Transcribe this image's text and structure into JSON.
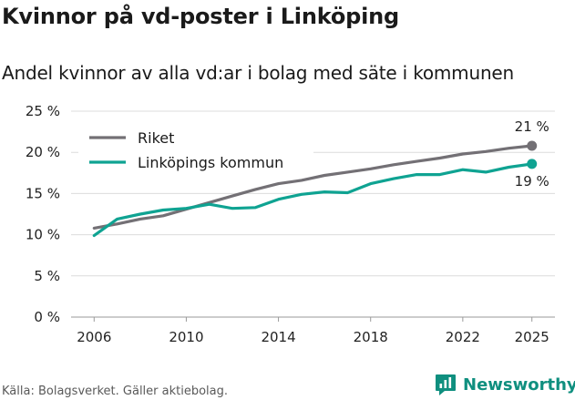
{
  "title": "Kvinnor på vd-poster i Linköping",
  "subtitle": "Andel kvinnor av alla vd:ar i bolag med säte i kommunen",
  "source": "Källa: Bolagsverket. Gäller aktiebolag.",
  "brand": {
    "name": "Newsworthy",
    "icon": "newsworthy-logo-icon",
    "color": "#0f8f7f"
  },
  "chart_data": {
    "type": "line",
    "title": "Kvinnor på vd-poster i Linköping",
    "subtitle": "Andel kvinnor av alla vd:ar i bolag med säte i kommunen",
    "xlabel": "",
    "ylabel": "",
    "x": [
      2006,
      2007,
      2008,
      2009,
      2010,
      2011,
      2012,
      2013,
      2014,
      2015,
      2016,
      2017,
      2018,
      2019,
      2020,
      2021,
      2022,
      2023,
      2024,
      2025
    ],
    "xticks": [
      2006,
      2010,
      2014,
      2018,
      2022,
      2025
    ],
    "xlim": [
      2005,
      2026
    ],
    "ylim": [
      0,
      25
    ],
    "yticks": [
      0,
      5,
      10,
      15,
      20,
      25
    ],
    "ytick_labels": [
      "0 %",
      "5 %",
      "10 %",
      "15 %",
      "20 %",
      "25 %"
    ],
    "grid": true,
    "legend_position": "top-left",
    "series": [
      {
        "name": "Riket",
        "color": "#737075",
        "values": [
          10.8,
          11.3,
          11.9,
          12.3,
          13.1,
          13.9,
          14.7,
          15.5,
          16.2,
          16.6,
          17.2,
          17.6,
          18.0,
          18.5,
          18.9,
          19.3,
          19.8,
          20.1,
          20.5,
          20.8
        ],
        "end_label": "21 %"
      },
      {
        "name": "Linköpings kommun",
        "color": "#0fa392",
        "values": [
          9.9,
          11.9,
          12.5,
          13.0,
          13.2,
          13.7,
          13.2,
          13.3,
          14.3,
          14.9,
          15.2,
          15.1,
          16.2,
          16.8,
          17.3,
          17.3,
          17.9,
          17.6,
          18.2,
          18.6
        ],
        "end_label": "19 %"
      }
    ]
  }
}
